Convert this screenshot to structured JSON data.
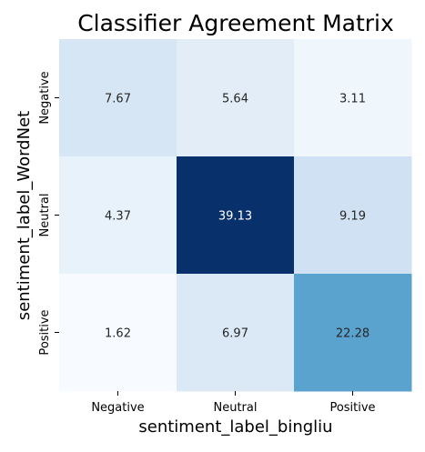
{
  "chart_data": {
    "type": "heatmap",
    "title": "Classifier Agreement Matrix",
    "xlabel": "sentiment_label_bingliu",
    "ylabel": "sentiment_label_WordNet",
    "x_categories": [
      "Negative",
      "Neutral",
      "Positive"
    ],
    "y_categories": [
      "Negative",
      "Neutral",
      "Positive"
    ],
    "values": [
      [
        7.67,
        5.64,
        3.11
      ],
      [
        4.37,
        39.13,
        9.19
      ],
      [
        1.62,
        6.97,
        22.28
      ]
    ],
    "colormap": "Blues",
    "colorbar": false,
    "annotations": true
  }
}
